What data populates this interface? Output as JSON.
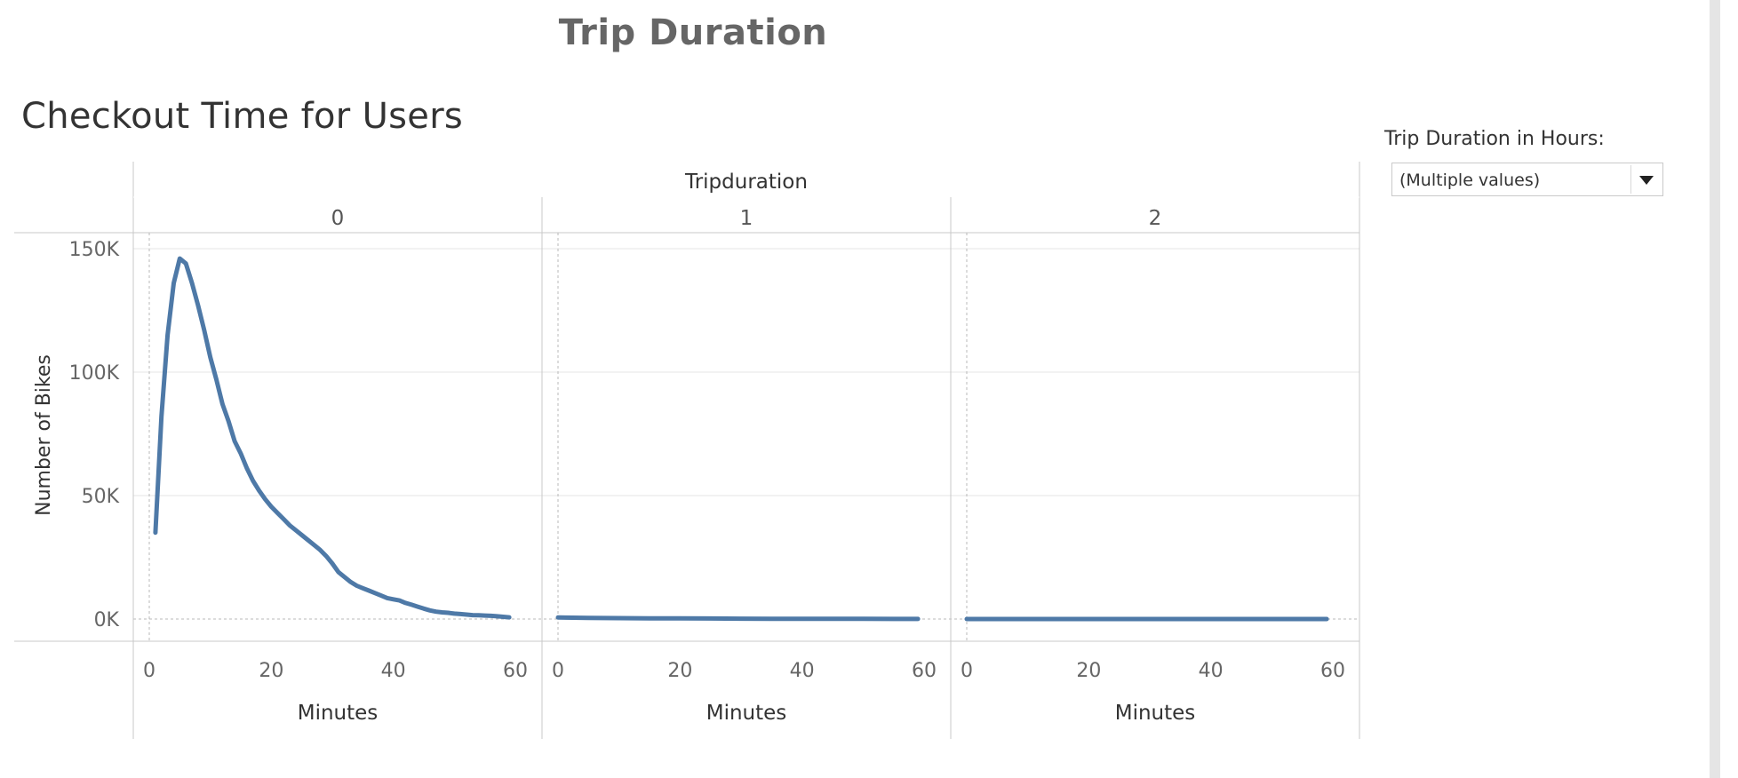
{
  "dashboard": {
    "title": "Trip Duration"
  },
  "sheet": {
    "title": "Checkout Time for Users"
  },
  "filter": {
    "title": "Trip Duration in Hours:",
    "value": "(Multiple values)",
    "icon": "dropdown-arrow-icon"
  },
  "colors": {
    "line": "#4e79a7",
    "title": "#666666",
    "text": "#333333",
    "grid": "#e6e6e6",
    "axis": "#c8c8c8"
  },
  "chart_data": {
    "type": "line",
    "panel_header": "Tripduration",
    "panels": [
      "0",
      "1",
      "2"
    ],
    "xlabel": "Minutes",
    "ylabel": "Number of Bikes",
    "xlim": [
      0,
      60
    ],
    "ylim": [
      0,
      150000
    ],
    "xticks": [
      "0",
      "20",
      "40",
      "60"
    ],
    "yticks": [
      "0K",
      "50K",
      "100K",
      "150K"
    ],
    "grid": true,
    "series": [
      {
        "panel": "0",
        "x": [
          1,
          2,
          3,
          4,
          5,
          6,
          7,
          8,
          9,
          10,
          11,
          12,
          13,
          14,
          15,
          16,
          17,
          18,
          19,
          20,
          21,
          22,
          23,
          24,
          25,
          26,
          27,
          28,
          29,
          30,
          31,
          32,
          33,
          34,
          35,
          36,
          37,
          38,
          39,
          40,
          41,
          42,
          43,
          44,
          45,
          46,
          47,
          48,
          49,
          50,
          51,
          52,
          53,
          54,
          55,
          56,
          57,
          58,
          59
        ],
        "values": [
          35000,
          82000,
          115000,
          136000,
          146000,
          144000,
          136000,
          127000,
          117000,
          106000,
          97000,
          87000,
          80000,
          72000,
          67000,
          61000,
          56000,
          52000,
          48500,
          45500,
          43000,
          40500,
          38000,
          36000,
          34000,
          32000,
          30000,
          28000,
          25500,
          22500,
          19000,
          17000,
          15000,
          13500,
          12500,
          11500,
          10500,
          9500,
          8500,
          8000,
          7500,
          6500,
          5800,
          5000,
          4200,
          3500,
          3000,
          2700,
          2500,
          2200,
          2000,
          1800,
          1600,
          1500,
          1400,
          1300,
          1100,
          900,
          700
        ]
      },
      {
        "panel": "1",
        "x": [
          0,
          5,
          10,
          15,
          20,
          25,
          30,
          35,
          40,
          45,
          50,
          55,
          59
        ],
        "values": [
          600,
          450,
          350,
          300,
          250,
          200,
          150,
          120,
          100,
          80,
          60,
          40,
          20
        ]
      },
      {
        "panel": "2",
        "x": [
          0,
          10,
          20,
          30,
          40,
          50,
          59
        ],
        "values": [
          5,
          5,
          5,
          5,
          5,
          5,
          5
        ]
      }
    ]
  }
}
